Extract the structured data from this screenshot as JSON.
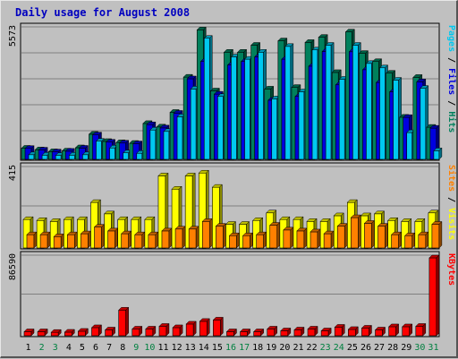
{
  "title": "Daily usage for August 2008",
  "colors": {
    "hits": "#00805c",
    "files": "#0000e0",
    "pages": "#00c8f0",
    "visits": "#ffff00",
    "sites": "#ff8000",
    "kbytes": "#ff0000",
    "weekday_label": "#000000",
    "weekend_label": "#008040",
    "panel_bg": "#c0c0c0",
    "title": "#0000c0"
  },
  "chart_data": [
    {
      "type": "bar",
      "panel": "hits-files-pages",
      "y_max_label": "5573",
      "ylim": [
        0,
        5573
      ],
      "right_label": [
        "Hits",
        "Files",
        "Pages"
      ],
      "right_label_separator": " / ",
      "categories": [
        "1",
        "2",
        "3",
        "4",
        "5",
        "6",
        "7",
        "8",
        "9",
        "10",
        "11",
        "12",
        "13",
        "14",
        "15",
        "16",
        "17",
        "18",
        "19",
        "20",
        "21",
        "22",
        "23",
        "24",
        "25",
        "26",
        "27",
        "28",
        "29",
        "30",
        "31"
      ],
      "weekend_days": [
        "2",
        "3",
        "9",
        "10",
        "16",
        "17",
        "23",
        "24",
        "30",
        "31"
      ],
      "series": [
        {
          "name": "Hits",
          "color": "#00805c",
          "values": [
            480,
            410,
            330,
            360,
            500,
            1080,
            770,
            720,
            690,
            1540,
            1390,
            2020,
            3530,
            5560,
            2940,
            4600,
            4600,
            4900,
            3020,
            5090,
            3090,
            5020,
            5240,
            3730,
            5470,
            4550,
            4200,
            3700,
            1810,
            3520,
            1380
          ]
        },
        {
          "name": "Files",
          "color": "#0000e0",
          "values": [
            470,
            400,
            320,
            350,
            480,
            1050,
            740,
            700,
            670,
            1490,
            1350,
            1980,
            3460,
            4200,
            2800,
            4050,
            4200,
            4400,
            2540,
            4300,
            2700,
            4000,
            4630,
            3200,
            4620,
            3850,
            3300,
            2900,
            1800,
            3330,
            1340
          ]
        },
        {
          "name": "Pages",
          "color": "#00c8f0",
          "values": [
            200,
            180,
            170,
            180,
            200,
            780,
            490,
            280,
            260,
            1260,
            1200,
            1830,
            3020,
            5200,
            2700,
            4400,
            4300,
            4600,
            2600,
            4850,
            2900,
            4700,
            4900,
            3440,
            4900,
            4120,
            3930,
            3400,
            1150,
            3050,
            370
          ]
        }
      ]
    },
    {
      "type": "bar",
      "panel": "visits-sites",
      "y_max_label": "415",
      "ylim": [
        0,
        415
      ],
      "right_label": [
        "Visits",
        "Sites"
      ],
      "right_label_separator": " / ",
      "categories": [
        "1",
        "2",
        "3",
        "4",
        "5",
        "6",
        "7",
        "8",
        "9",
        "10",
        "11",
        "12",
        "13",
        "14",
        "15",
        "16",
        "17",
        "18",
        "19",
        "20",
        "21",
        "22",
        "23",
        "24",
        "25",
        "26",
        "27",
        "28",
        "29",
        "30",
        "31"
      ],
      "weekend_days": [
        "2",
        "3",
        "9",
        "10",
        "16",
        "17",
        "23",
        "24",
        "30",
        "31"
      ],
      "series": [
        {
          "name": "Visits",
          "color": "#ffff00",
          "values": [
            150,
            145,
            140,
            150,
            150,
            240,
            180,
            150,
            150,
            150,
            380,
            310,
            380,
            395,
            320,
            125,
            125,
            145,
            185,
            150,
            150,
            140,
            140,
            170,
            240,
            170,
            180,
            145,
            140,
            140,
            185
          ]
        },
        {
          "name": "Sites",
          "color": "#ff8000",
          "values": [
            70,
            70,
            60,
            70,
            75,
            110,
            90,
            75,
            70,
            70,
            90,
            100,
            100,
            140,
            115,
            65,
            65,
            70,
            120,
            95,
            90,
            85,
            75,
            115,
            160,
            130,
            115,
            70,
            65,
            70,
            125
          ]
        }
      ]
    },
    {
      "type": "bar",
      "panel": "kbytes",
      "y_max_label": "86590",
      "ylim": [
        0,
        86590
      ],
      "right_label": [
        "KBytes"
      ],
      "right_label_separator": "",
      "categories": [
        "1",
        "2",
        "3",
        "4",
        "5",
        "6",
        "7",
        "8",
        "9",
        "10",
        "11",
        "12",
        "13",
        "14",
        "15",
        "16",
        "17",
        "18",
        "19",
        "20",
        "21",
        "22",
        "23",
        "24",
        "25",
        "26",
        "27",
        "28",
        "29",
        "30",
        "31"
      ],
      "weekend_days": [
        "2",
        "3",
        "9",
        "10",
        "16",
        "17",
        "23",
        "24",
        "30",
        "31"
      ],
      "series": [
        {
          "name": "KBytes",
          "color": "#ff0000",
          "values": [
            4500,
            4500,
            3800,
            4000,
            5000,
            9000,
            6500,
            28500,
            7500,
            7500,
            10500,
            9000,
            13000,
            16000,
            17500,
            4500,
            4500,
            4500,
            7500,
            5500,
            6500,
            7500,
            5500,
            9500,
            7000,
            8500,
            6500,
            10000,
            10000,
            10500,
            86590
          ]
        }
      ]
    }
  ]
}
